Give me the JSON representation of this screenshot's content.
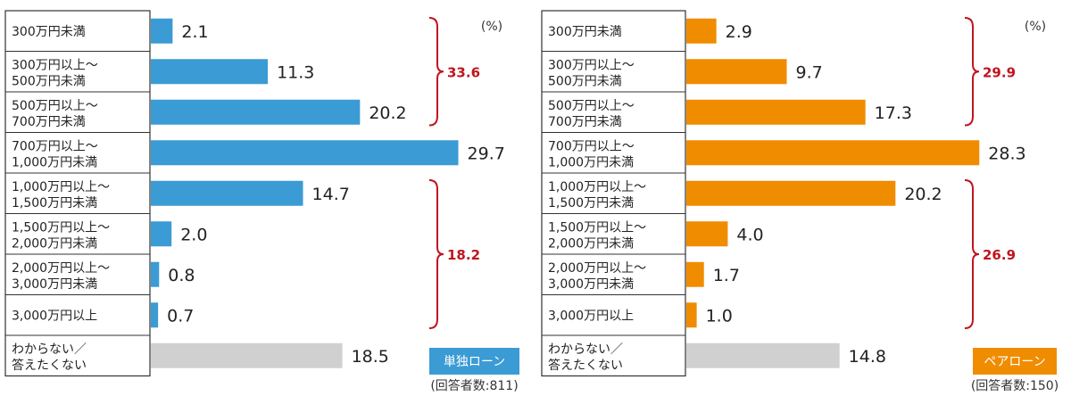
{
  "chart_data": [
    {
      "type": "bar",
      "orientation": "horizontal",
      "unit_label": "(%)",
      "categories": [
        [
          "300万円未満"
        ],
        [
          "300万円以上～",
          "500万円未満"
        ],
        [
          "500万円以上～",
          "700万円未満"
        ],
        [
          "700万円以上～",
          "1,000万円未満"
        ],
        [
          "1,000万円以上～",
          "1,500万円未満"
        ],
        [
          "1,500万円以上～",
          "2,000万円未満"
        ],
        [
          "2,000万円以上～",
          "3,000万円未満"
        ],
        [
          "3,000万円以上"
        ],
        [
          "わからない／",
          "答えたくない"
        ]
      ],
      "values": [
        2.1,
        11.3,
        20.2,
        29.7,
        14.7,
        2.0,
        0.8,
        0.7,
        18.5
      ],
      "value_labels": [
        "2.1",
        "11.3",
        "20.2",
        "29.7",
        "14.7",
        "2.0",
        "0.8",
        "0.7",
        "18.5"
      ],
      "bar_color": "#3b9bd4",
      "unknown_color": "#d0d0d0",
      "brackets": [
        {
          "from": 0,
          "to": 2,
          "label": "33.6"
        },
        {
          "from": 4,
          "to": 7,
          "label": "18.2"
        }
      ],
      "legend": {
        "label": "単独ローン",
        "color": "#3b9bd4"
      },
      "note": "(回答者数:811)",
      "xlim": [
        0,
        30
      ]
    },
    {
      "type": "bar",
      "orientation": "horizontal",
      "unit_label": "(%)",
      "categories": [
        [
          "300万円未満"
        ],
        [
          "300万円以上～",
          "500万円未満"
        ],
        [
          "500万円以上～",
          "700万円未満"
        ],
        [
          "700万円以上～",
          "1,000万円未満"
        ],
        [
          "1,000万円以上～",
          "1,500万円未満"
        ],
        [
          "1,500万円以上～",
          "2,000万円未満"
        ],
        [
          "2,000万円以上～",
          "3,000万円未満"
        ],
        [
          "3,000万円以上"
        ],
        [
          "わからない／",
          "答えたくない"
        ]
      ],
      "values": [
        2.9,
        9.7,
        17.3,
        28.3,
        20.2,
        4.0,
        1.7,
        1.0,
        14.8
      ],
      "value_labels": [
        "2.9",
        "9.7",
        "17.3",
        "28.3",
        "20.2",
        "4.0",
        "1.7",
        "1.0",
        "14.8"
      ],
      "bar_color": "#f08c00",
      "unknown_color": "#d0d0d0",
      "brackets": [
        {
          "from": 0,
          "to": 2,
          "label": "29.9"
        },
        {
          "from": 4,
          "to": 7,
          "label": "26.9"
        }
      ],
      "legend": {
        "label": "ペアローン",
        "color": "#f08c00"
      },
      "note": "(回答者数:150)",
      "xlim": [
        0,
        30
      ]
    }
  ],
  "bracket_color": "#c0141e"
}
